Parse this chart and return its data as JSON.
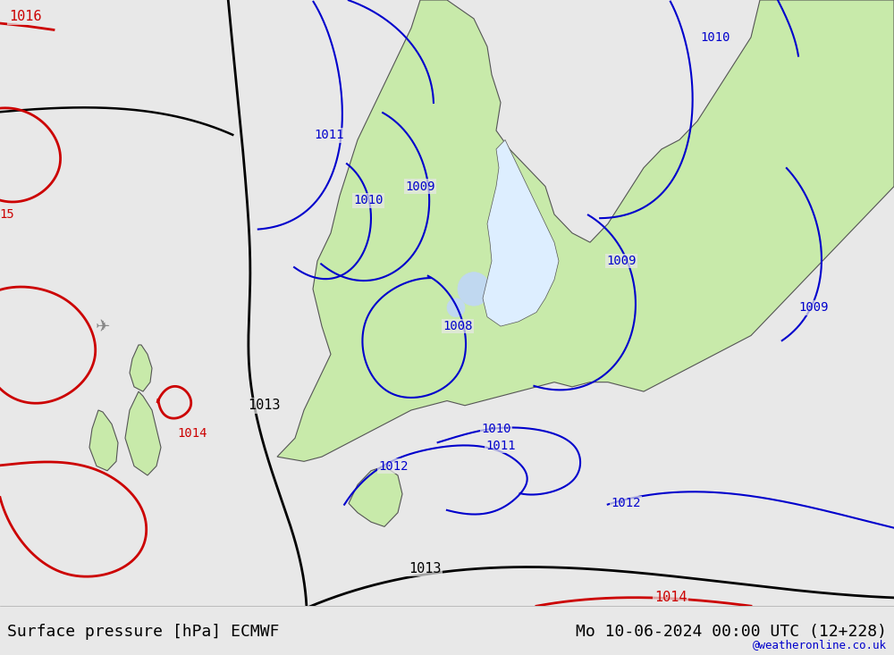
{
  "title_left": "Surface pressure [hPa] ECMWF",
  "title_right": "Mo 10-06-2024 00:00 UTC (12+228)",
  "watermark": "@weatheronline.co.uk",
  "bg_color": "#e8e8e8",
  "land_color": "#c8eaaa",
  "figsize": [
    10.0,
    7.33
  ],
  "dpi": 100,
  "bottom_bar_height": 0.075,
  "font_family": "monospace"
}
